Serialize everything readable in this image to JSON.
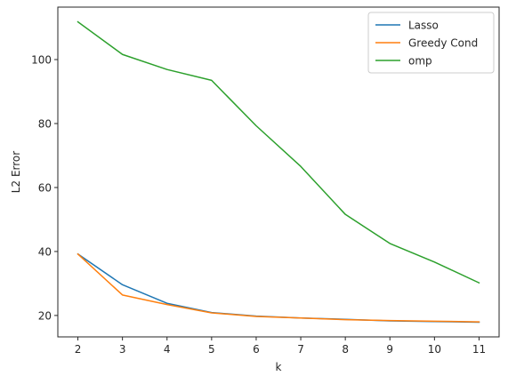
{
  "chart_data": {
    "type": "line",
    "title": "",
    "xlabel": "k",
    "ylabel": "L2 Error",
    "x": [
      2,
      3,
      4,
      5,
      6,
      7,
      8,
      9,
      10,
      11
    ],
    "x_ticks": [
      "2",
      "3",
      "4",
      "5",
      "6",
      "7",
      "8",
      "9",
      "10",
      "11"
    ],
    "y_ticks": [
      "20",
      "40",
      "60",
      "80",
      "100"
    ],
    "xlim": [
      1.55,
      11.45
    ],
    "ylim": [
      13.3,
      116.4
    ],
    "grid": false,
    "legend_position": "top-right",
    "series": [
      {
        "name": "Lasso",
        "color": "#1f77b4",
        "values": [
          39.2,
          29.6,
          23.8,
          20.9,
          19.8,
          19.2,
          18.8,
          18.3,
          18.1,
          17.9
        ]
      },
      {
        "name": "Greedy Cond",
        "color": "#ff7f0e",
        "values": [
          39.2,
          26.4,
          23.4,
          20.8,
          19.7,
          19.2,
          18.7,
          18.4,
          18.2,
          18.0
        ]
      },
      {
        "name": "omp",
        "color": "#2ca02c",
        "values": [
          111.8,
          101.6,
          96.9,
          93.5,
          79.3,
          66.6,
          51.6,
          42.5,
          36.7,
          30.2
        ]
      }
    ]
  }
}
